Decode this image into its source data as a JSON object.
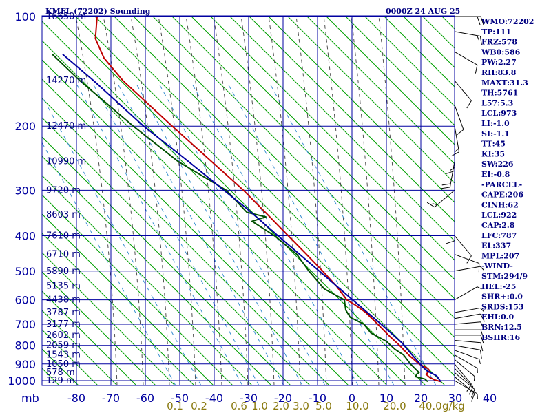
{
  "header": {
    "station_title": "KMFL (72202) Sounding",
    "datetime": "0000Z 24 AUG 25"
  },
  "chart_data": {
    "type": "skew-t",
    "pressure_unit_label": "mb",
    "mixing_ratio_unit_label": "g/kg",
    "pressure_levels": [
      100,
      200,
      300,
      400,
      500,
      600,
      700,
      800,
      900,
      1000
    ],
    "pressure_labels": [
      "100",
      "200",
      "300",
      "400",
      "500",
      "600",
      "700",
      "800",
      "900",
      "1000"
    ],
    "temperature_ticks": [
      "-80",
      "-70",
      "-60",
      "-50",
      "-40",
      "-30",
      "-20",
      "-10",
      "0",
      "10",
      "20",
      "30",
      "40"
    ],
    "mixing_ratio_labels": [
      "0.1",
      "0.2",
      "0.6",
      "1.0",
      "2.0",
      "3.0",
      "5.0",
      "10.0",
      "20.0",
      "40.0"
    ],
    "height_labels": [
      {
        "p": 100,
        "text": "16650 m"
      },
      {
        "p": 150,
        "text": "14270 m"
      },
      {
        "p": 200,
        "text": "12470 m"
      },
      {
        "p": 250,
        "text": "10990 m"
      },
      {
        "p": 300,
        "text": "9720 m"
      },
      {
        "p": 350,
        "text": "8603 m"
      },
      {
        "p": 400,
        "text": "7610 m"
      },
      {
        "p": 450,
        "text": "6710 m"
      },
      {
        "p": 500,
        "text": "5890 m"
      },
      {
        "p": 550,
        "text": "5135 m"
      },
      {
        "p": 600,
        "text": "4438 m"
      },
      {
        "p": 650,
        "text": "3787 m"
      },
      {
        "p": 700,
        "text": "3177 m"
      },
      {
        "p": 750,
        "text": "2602 m"
      },
      {
        "p": 800,
        "text": "2059 m"
      },
      {
        "p": 850,
        "text": "1543 m"
      },
      {
        "p": 900,
        "text": "1050 m"
      },
      {
        "p": 950,
        "text": "578 m"
      },
      {
        "p": 1000,
        "text": "129 m"
      }
    ],
    "series": [
      {
        "color": "#c00000",
        "points": [
          {
            "p": 1006,
            "t": 25.8
          },
          {
            "p": 995,
            "t": 24.0
          },
          {
            "p": 980,
            "t": 22.6
          },
          {
            "p": 960,
            "t": 21.5
          },
          {
            "p": 940,
            "t": 22.6
          },
          {
            "p": 925,
            "t": 22.0
          },
          {
            "p": 900,
            "t": 19.5
          },
          {
            "p": 850,
            "t": 16.5
          },
          {
            "p": 800,
            "t": 13.8
          },
          {
            "p": 750,
            "t": 10.6
          },
          {
            "p": 700,
            "t": 7.5
          },
          {
            "p": 650,
            "t": 4.0
          },
          {
            "p": 620,
            "t": 1.0
          },
          {
            "p": 600,
            "t": -1.5
          },
          {
            "p": 550,
            "t": -4.5
          },
          {
            "p": 500,
            "t": -8.5
          },
          {
            "p": 450,
            "t": -13.2
          },
          {
            "p": 400,
            "t": -18.5
          },
          {
            "p": 350,
            "t": -24.5
          },
          {
            "p": 300,
            "t": -31.5
          },
          {
            "p": 250,
            "t": -40.8
          },
          {
            "p": 200,
            "t": -52.2
          },
          {
            "p": 150,
            "t": -66.5
          },
          {
            "p": 130,
            "t": -72.0
          },
          {
            "p": 115,
            "t": -74.5
          },
          {
            "p": 100,
            "t": -74.0
          }
        ]
      },
      {
        "color": "#005000",
        "points": [
          {
            "p": 1006,
            "t": 22.0
          },
          {
            "p": 990,
            "t": 21.2
          },
          {
            "p": 975,
            "t": 18.5
          },
          {
            "p": 960,
            "t": 18.8
          },
          {
            "p": 950,
            "t": 19.5
          },
          {
            "p": 930,
            "t": 18.5
          },
          {
            "p": 900,
            "t": 17.0
          },
          {
            "p": 850,
            "t": 15.0
          },
          {
            "p": 820,
            "t": 12.5
          },
          {
            "p": 780,
            "t": 10.0
          },
          {
            "p": 740,
            "t": 5.5
          },
          {
            "p": 700,
            "t": 3.5
          },
          {
            "p": 670,
            "t": -0.5
          },
          {
            "p": 640,
            "t": -1.8
          },
          {
            "p": 600,
            "t": -2.2
          },
          {
            "p": 560,
            "t": -8.0
          },
          {
            "p": 500,
            "t": -12.5
          },
          {
            "p": 450,
            "t": -16.0
          },
          {
            "p": 400,
            "t": -22.5
          },
          {
            "p": 365,
            "t": -29.0
          },
          {
            "p": 355,
            "t": -25.0
          },
          {
            "p": 345,
            "t": -30.5
          },
          {
            "p": 300,
            "t": -36.5
          },
          {
            "p": 250,
            "t": -50.5
          },
          {
            "p": 200,
            "t": -63.5
          },
          {
            "p": 150,
            "t": -79.0
          },
          {
            "p": 127,
            "t": -87.0
          }
        ]
      },
      {
        "color": "#0000a0",
        "points": [
          {
            "p": 1006,
            "t": 25.8
          },
          {
            "p": 970,
            "t": 24.6
          },
          {
            "p": 940,
            "t": 21.8
          },
          {
            "p": 922,
            "t": 20.8
          },
          {
            "p": 850,
            "t": 17.5
          },
          {
            "p": 787,
            "t": 14.5
          },
          {
            "p": 700,
            "t": 8.5
          },
          {
            "p": 600,
            "t": 0.2
          },
          {
            "p": 500,
            "t": -9.5
          },
          {
            "p": 400,
            "t": -21.5
          },
          {
            "p": 337,
            "t": -30.5
          },
          {
            "p": 300,
            "t": -37.2
          },
          {
            "p": 250,
            "t": -47.5
          },
          {
            "p": 200,
            "t": -60.5
          },
          {
            "p": 150,
            "t": -75.0
          },
          {
            "p": 127,
            "t": -84.0
          }
        ]
      }
    ]
  },
  "indices": [
    "WMO:72202",
    "TP:111",
    "FRZ:578",
    "WB0:586",
    "PW:2.27",
    "RH:83.8",
    "MAXT:31.3",
    "TH:5761",
    "L57:5.3",
    "LCL:973",
    "LI:-1.0",
    "SI:-1.1",
    "TT:45",
    "KI:35",
    "SW:226",
    "EI:-0.8",
    "-PARCEL-",
    "CAPE:206",
    "CINH:62",
    "LCL:922",
    "CAP:2.8",
    "LFC:787",
    "EL:337",
    "MPL:207",
    "-WIND-",
    "STM:294/9",
    "HEL:-25",
    "SHR+:0.0",
    "SRDS:153",
    "EHI:0.0",
    "BRN:12.5",
    "BSHR:16"
  ],
  "wind_barbs": [
    {
      "p": 1000,
      "dir": 120,
      "spd": 5
    },
    {
      "p": 975,
      "dir": 130,
      "spd": 10
    },
    {
      "p": 950,
      "dir": 130,
      "spd": 10
    },
    {
      "p": 925,
      "dir": 135,
      "spd": 10
    },
    {
      "p": 900,
      "dir": 140,
      "spd": 10
    },
    {
      "p": 875,
      "dir": 130,
      "spd": 5
    },
    {
      "p": 850,
      "dir": 120,
      "spd": 5
    },
    {
      "p": 825,
      "dir": 110,
      "spd": 5
    },
    {
      "p": 800,
      "dir": 100,
      "spd": 10
    },
    {
      "p": 775,
      "dir": 95,
      "spd": 10
    },
    {
      "p": 750,
      "dir": 90,
      "spd": 10
    },
    {
      "p": 725,
      "dir": 90,
      "spd": 10
    },
    {
      "p": 700,
      "dir": 85,
      "spd": 10
    },
    {
      "p": 675,
      "dir": 80,
      "spd": 10
    },
    {
      "p": 650,
      "dir": 80,
      "spd": 5
    },
    {
      "p": 600,
      "dir": 60,
      "spd": 5
    },
    {
      "p": 500,
      "dir": 80,
      "spd": 5
    },
    {
      "p": 450,
      "dir": 110,
      "spd": 10
    },
    {
      "p": 400,
      "dir": 140,
      "spd": 10
    },
    {
      "p": 350,
      "dir": 180,
      "spd": 10
    },
    {
      "p": 300,
      "dir": 230,
      "spd": 15
    },
    {
      "p": 250,
      "dir": 190,
      "spd": 20
    },
    {
      "p": 225,
      "dir": 180,
      "spd": 15
    },
    {
      "p": 200,
      "dir": 170,
      "spd": 15
    },
    {
      "p": 175,
      "dir": 160,
      "spd": 10
    },
    {
      "p": 150,
      "dir": 140,
      "spd": 10
    },
    {
      "p": 125,
      "dir": 120,
      "spd": 10
    },
    {
      "p": 110,
      "dir": 100,
      "spd": 15
    },
    {
      "p": 100,
      "dir": 90,
      "spd": 20
    }
  ],
  "colors": {
    "grid": "#0000a0",
    "dry_adiabat": "#00a000",
    "moist_adiabat": "#505050",
    "mixing_ratio": "#3a8fd0",
    "temperature": "#c00000",
    "dewpoint": "#005000",
    "parcel": "#0000a0"
  }
}
